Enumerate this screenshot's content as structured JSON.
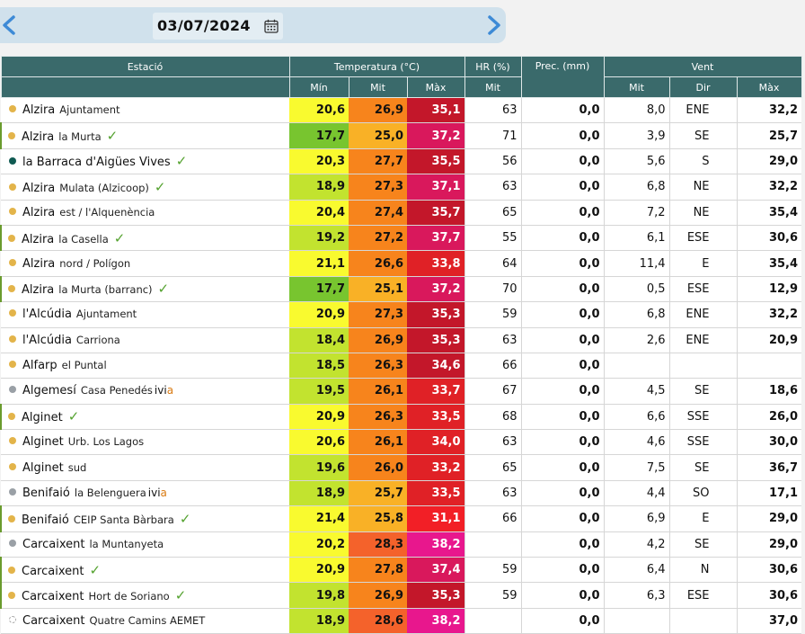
{
  "date_nav": {
    "date": "03/07/2024",
    "prev_icon": "chevron-left-icon",
    "next_icon": "chevron-right-icon",
    "calendar_icon": "calendar-icon"
  },
  "table": {
    "headers": {
      "station": "Estació",
      "temperature": "Temperatura (°C)",
      "humidity": "HR (%)",
      "precipitation": "Prec. (mm)",
      "wind": "Vent",
      "min": "Mín",
      "mean": "Mit",
      "max": "Màx",
      "hr_mean": "Mit",
      "wind_mean": "Mit",
      "wind_dir": "Dir",
      "wind_max": "Màx"
    },
    "colors": {
      "dot_yellow": "#e3b44a",
      "dot_grey": "#9aa0a6",
      "dot_teal": "#0f5a52",
      "check": "#54a22f",
      "ivia_accent": "#d97a12"
    },
    "rows": [
      {
        "town": "Alzira",
        "sub": "Ajuntament",
        "dot": "yellow",
        "check": false,
        "ivia": false,
        "grp": false,
        "tmin": "20,6",
        "tmin_c": "#f9fa2f",
        "tmit": "26,9",
        "tmit_c": "#f7841c",
        "tmax": "35,1",
        "tmax_c": "#c3172a",
        "hr": "63",
        "prec": "0,0",
        "wmit": "8,0",
        "wdir": "ENE",
        "wmax": "32,2"
      },
      {
        "town": "Alzira",
        "sub": "la Murta",
        "dot": "yellow",
        "check": true,
        "ivia": false,
        "grp": true,
        "tmin": "17,7",
        "tmin_c": "#78c52f",
        "tmit": "25,0",
        "tmit_c": "#f9b126",
        "tmax": "37,2",
        "tmax_c": "#d9185c",
        "hr": "71",
        "prec": "0,0",
        "wmit": "3,9",
        "wdir": "SE",
        "wmax": "25,7"
      },
      {
        "town": "la Barraca d'Aigües Vives",
        "sub": "",
        "dot": "teal",
        "check": true,
        "ivia": false,
        "grp": false,
        "tmin": "20,3",
        "tmin_c": "#f9fa2f",
        "tmit": "27,7",
        "tmit_c": "#f7841c",
        "tmax": "35,5",
        "tmax_c": "#c3172a",
        "hr": "56",
        "prec": "0,0",
        "wmit": "5,6",
        "wdir": "S",
        "wmax": "29,0"
      },
      {
        "town": "Alzira",
        "sub": "Mulata (Alzicoop)",
        "dot": "yellow",
        "check": true,
        "ivia": false,
        "grp": false,
        "tmin": "18,9",
        "tmin_c": "#c2e32f",
        "tmit": "27,3",
        "tmit_c": "#f7841c",
        "tmax": "37,1",
        "tmax_c": "#d9185c",
        "hr": "63",
        "prec": "0,0",
        "wmit": "6,8",
        "wdir": "NE",
        "wmax": "32,2"
      },
      {
        "town": "Alzira",
        "sub": "est / l'Alquenència",
        "dot": "yellow",
        "check": false,
        "ivia": false,
        "grp": false,
        "tmin": "20,4",
        "tmin_c": "#f9fa2f",
        "tmit": "27,4",
        "tmit_c": "#f7841c",
        "tmax": "35,7",
        "tmax_c": "#c3172a",
        "hr": "65",
        "prec": "0,0",
        "wmit": "7,2",
        "wdir": "NE",
        "wmax": "35,4"
      },
      {
        "town": "Alzira",
        "sub": "la Casella",
        "dot": "yellow",
        "check": true,
        "ivia": false,
        "grp": true,
        "tmin": "19,2",
        "tmin_c": "#c2e32f",
        "tmit": "27,2",
        "tmit_c": "#f7841c",
        "tmax": "37,7",
        "tmax_c": "#d9185c",
        "hr": "55",
        "prec": "0,0",
        "wmit": "6,1",
        "wdir": "ESE",
        "wmax": "30,6"
      },
      {
        "town": "Alzira",
        "sub": "nord / Polígon",
        "dot": "yellow",
        "check": false,
        "ivia": false,
        "grp": false,
        "tmin": "21,1",
        "tmin_c": "#f9fa2f",
        "tmit": "26,6",
        "tmit_c": "#f7841c",
        "tmax": "33,8",
        "tmax_c": "#e02126",
        "hr": "64",
        "prec": "0,0",
        "wmit": "11,4",
        "wdir": "E",
        "wmax": "35,4"
      },
      {
        "town": "Alzira",
        "sub": "la Murta (barranc)",
        "dot": "yellow",
        "check": true,
        "ivia": false,
        "grp": true,
        "tmin": "17,7",
        "tmin_c": "#78c52f",
        "tmit": "25,1",
        "tmit_c": "#f9b126",
        "tmax": "37,2",
        "tmax_c": "#d9185c",
        "hr": "70",
        "prec": "0,0",
        "wmit": "0,5",
        "wdir": "ESE",
        "wmax": "12,9"
      },
      {
        "town": "l'Alcúdia",
        "sub": "Ajuntament",
        "dot": "yellow",
        "check": false,
        "ivia": false,
        "grp": false,
        "tmin": "20,9",
        "tmin_c": "#f9fa2f",
        "tmit": "27,3",
        "tmit_c": "#f7841c",
        "tmax": "35,3",
        "tmax_c": "#c3172a",
        "hr": "59",
        "prec": "0,0",
        "wmit": "6,8",
        "wdir": "ENE",
        "wmax": "32,2"
      },
      {
        "town": "l'Alcúdia",
        "sub": "Carriona",
        "dot": "yellow",
        "check": false,
        "ivia": false,
        "grp": false,
        "tmin": "18,4",
        "tmin_c": "#c2e32f",
        "tmit": "26,9",
        "tmit_c": "#f7841c",
        "tmax": "35,3",
        "tmax_c": "#c3172a",
        "hr": "63",
        "prec": "0,0",
        "wmit": "2,6",
        "wdir": "ENE",
        "wmax": "20,9"
      },
      {
        "town": "Alfarp",
        "sub": "el Puntal",
        "dot": "yellow",
        "check": false,
        "ivia": false,
        "grp": false,
        "tmin": "18,5",
        "tmin_c": "#c2e32f",
        "tmit": "26,3",
        "tmit_c": "#f7841c",
        "tmax": "34,6",
        "tmax_c": "#c3172a",
        "hr": "66",
        "prec": "0,0",
        "wmit": "",
        "wdir": "",
        "wmax": ""
      },
      {
        "town": "Algemesí",
        "sub": "Casa Penedés",
        "dot": "grey",
        "check": false,
        "ivia": true,
        "grp": false,
        "tmin": "19,5",
        "tmin_c": "#c2e32f",
        "tmit": "26,1",
        "tmit_c": "#f7841c",
        "tmax": "33,7",
        "tmax_c": "#e02126",
        "hr": "67",
        "prec": "0,0",
        "wmit": "4,5",
        "wdir": "SE",
        "wmax": "18,6"
      },
      {
        "town": "Alginet",
        "sub": "",
        "dot": "yellow",
        "check": true,
        "ivia": false,
        "grp": true,
        "tmin": "20,9",
        "tmin_c": "#f9fa2f",
        "tmit": "26,3",
        "tmit_c": "#f7841c",
        "tmax": "33,5",
        "tmax_c": "#e02126",
        "hr": "68",
        "prec": "0,0",
        "wmit": "6,6",
        "wdir": "SSE",
        "wmax": "26,0"
      },
      {
        "town": "Alginet",
        "sub": "Urb. Los Lagos",
        "dot": "yellow",
        "check": false,
        "ivia": false,
        "grp": false,
        "tmin": "20,6",
        "tmin_c": "#f9fa2f",
        "tmit": "26,1",
        "tmit_c": "#f7841c",
        "tmax": "34,0",
        "tmax_c": "#e02126",
        "hr": "63",
        "prec": "0,0",
        "wmit": "4,6",
        "wdir": "SSE",
        "wmax": "30,0"
      },
      {
        "town": "Alginet",
        "sub": "sud",
        "dot": "yellow",
        "check": false,
        "ivia": false,
        "grp": false,
        "tmin": "19,6",
        "tmin_c": "#c2e32f",
        "tmit": "26,0",
        "tmit_c": "#f7841c",
        "tmax": "33,2",
        "tmax_c": "#e02126",
        "hr": "65",
        "prec": "0,0",
        "wmit": "7,5",
        "wdir": "SE",
        "wmax": "36,7"
      },
      {
        "town": "Benifaió",
        "sub": "la Belenguera",
        "dot": "grey",
        "check": false,
        "ivia": true,
        "grp": false,
        "tmin": "18,9",
        "tmin_c": "#c2e32f",
        "tmit": "25,7",
        "tmit_c": "#f9b126",
        "tmax": "33,5",
        "tmax_c": "#e02126",
        "hr": "63",
        "prec": "0,0",
        "wmit": "4,4",
        "wdir": "SO",
        "wmax": "17,1"
      },
      {
        "town": "Benifaió",
        "sub": "CEIP Santa Bàrbara",
        "dot": "yellow",
        "check": true,
        "ivia": false,
        "grp": true,
        "tmin": "21,4",
        "tmin_c": "#f9fa2f",
        "tmit": "25,8",
        "tmit_c": "#f9b126",
        "tmax": "31,1",
        "tmax_c": "#f21f26",
        "hr": "66",
        "prec": "0,0",
        "wmit": "6,9",
        "wdir": "E",
        "wmax": "29,0"
      },
      {
        "town": "Carcaixent",
        "sub": "la Muntanyeta",
        "dot": "grey",
        "check": false,
        "ivia": false,
        "grp": false,
        "tmin": "20,2",
        "tmin_c": "#f9fa2f",
        "tmit": "28,3",
        "tmit_c": "#f4622b",
        "tmax": "38,2",
        "tmax_c": "#e8178d",
        "hr": "",
        "prec": "0,0",
        "wmit": "4,2",
        "wdir": "SE",
        "wmax": "29,0"
      },
      {
        "town": "Carcaixent",
        "sub": "",
        "dot": "yellow",
        "check": true,
        "ivia": false,
        "grp": true,
        "tmin": "20,9",
        "tmin_c": "#f9fa2f",
        "tmit": "27,8",
        "tmit_c": "#f7841c",
        "tmax": "37,4",
        "tmax_c": "#d9185c",
        "hr": "59",
        "prec": "0,0",
        "wmit": "6,4",
        "wdir": "N",
        "wmax": "30,6"
      },
      {
        "town": "Carcaixent",
        "sub": "Hort de Soriano",
        "dot": "yellow",
        "check": true,
        "ivia": false,
        "grp": true,
        "tmin": "19,8",
        "tmin_c": "#c2e32f",
        "tmit": "26,9",
        "tmit_c": "#f7841c",
        "tmax": "35,3",
        "tmax_c": "#c3172a",
        "hr": "59",
        "prec": "0,0",
        "wmit": "6,3",
        "wdir": "ESE",
        "wmax": "30,6"
      },
      {
        "town": "Carcaixent",
        "sub": "Quatre Camins AEMET",
        "dot": "hollow",
        "check": false,
        "ivia": false,
        "grp": false,
        "tmin": "18,9",
        "tmin_c": "#c2e32f",
        "tmit": "28,6",
        "tmit_c": "#f4622b",
        "tmax": "38,2",
        "tmax_c": "#e8178d",
        "hr": "",
        "prec": "0,0",
        "wmit": "",
        "wdir": "",
        "wmax": "37,0"
      }
    ],
    "ivia_label": "ivi",
    "ivia_accent_letter": "a",
    "check_glyph": "✓"
  }
}
